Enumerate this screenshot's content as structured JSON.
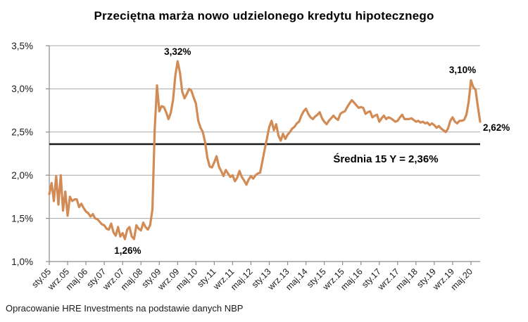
{
  "title": "Przeciętna marża nowo udzielonego kredytu hipotecznego",
  "footer": "Opracowanie HRE Investments na podstawie danych NBP",
  "chart_data": {
    "type": "line",
    "title": "Przeciętna marża nowo udzielonego kredytu hipotecznego",
    "xlabel": "",
    "ylabel": "",
    "ylim": [
      1.0,
      3.5
    ],
    "grid": "horizontal",
    "legend": "none",
    "line_color": "#D28B55",
    "x_unit": "month",
    "x_tick_interval_months": 8,
    "x_tick_labels": [
      "sty.05",
      "wrz.05",
      "maj.06",
      "sty.07",
      "wrz.07",
      "maj.08",
      "sty.09",
      "wrz.09",
      "maj.10",
      "sty.11",
      "wrz.11",
      "maj.12",
      "sty.13",
      "wrz.13",
      "maj.14",
      "sty.15",
      "wrz.15",
      "maj.16",
      "sty.17",
      "wrz.17",
      "maj.18",
      "sty.19",
      "wrz.19",
      "maj.20"
    ],
    "y_tick_labels": [
      "1,0%",
      "1,5%",
      "2,0%",
      "2,5%",
      "3,0%",
      "3,5%"
    ],
    "values": [
      1.78,
      1.91,
      1.7,
      1.99,
      1.66,
      2.0,
      1.59,
      1.81,
      1.53,
      1.75,
      1.7,
      1.72,
      1.72,
      1.63,
      1.67,
      1.62,
      1.58,
      1.56,
      1.52,
      1.55,
      1.5,
      1.49,
      1.46,
      1.43,
      1.42,
      1.38,
      1.37,
      1.44,
      1.34,
      1.3,
      1.4,
      1.29,
      1.33,
      1.26,
      1.37,
      1.4,
      1.29,
      1.26,
      1.42,
      1.38,
      1.36,
      1.45,
      1.4,
      1.37,
      1.42,
      1.6,
      2.52,
      3.04,
      2.74,
      2.8,
      2.79,
      2.73,
      2.65,
      2.72,
      2.87,
      3.15,
      3.32,
      3.19,
      2.97,
      2.89,
      2.94,
      3.0,
      2.98,
      2.9,
      2.83,
      2.63,
      2.55,
      2.5,
      2.38,
      2.2,
      2.1,
      2.09,
      2.15,
      2.22,
      2.1,
      2.05,
      1.99,
      2.06,
      2.02,
      1.98,
      2.0,
      1.93,
      1.97,
      2.05,
      1.98,
      1.94,
      1.89,
      1.95,
      1.99,
      1.96,
      2.0,
      2.02,
      2.03,
      2.16,
      2.3,
      2.43,
      2.56,
      2.63,
      2.52,
      2.59,
      2.46,
      2.4,
      2.48,
      2.42,
      2.47,
      2.5,
      2.54,
      2.56,
      2.6,
      2.62,
      2.69,
      2.74,
      2.77,
      2.71,
      2.67,
      2.65,
      2.68,
      2.7,
      2.73,
      2.66,
      2.62,
      2.59,
      2.63,
      2.66,
      2.69,
      2.66,
      2.64,
      2.71,
      2.73,
      2.74,
      2.79,
      2.83,
      2.87,
      2.84,
      2.81,
      2.78,
      2.79,
      2.78,
      2.71,
      2.73,
      2.74,
      2.67,
      2.69,
      2.7,
      2.62,
      2.66,
      2.69,
      2.65,
      2.67,
      2.66,
      2.64,
      2.62,
      2.63,
      2.67,
      2.7,
      2.65,
      2.65,
      2.65,
      2.66,
      2.64,
      2.62,
      2.63,
      2.61,
      2.62,
      2.6,
      2.61,
      2.58,
      2.6,
      2.58,
      2.55,
      2.57,
      2.54,
      2.52,
      2.5,
      2.54,
      2.63,
      2.67,
      2.62,
      2.6,
      2.63,
      2.63,
      2.64,
      2.7,
      2.85,
      3.1,
      3.02,
      2.99,
      2.8,
      2.62
    ],
    "average_line": {
      "label": "Średnia 15 Y = 2,36%",
      "value": 2.36,
      "color": "#1a1a1a"
    },
    "annotations": [
      {
        "label": "3,32%",
        "index": 56,
        "value": 3.32,
        "position": "above"
      },
      {
        "label": "1,26%",
        "index": 33,
        "value": 1.26,
        "position": "below"
      },
      {
        "label": "3,10%",
        "index": 184,
        "value": 3.1,
        "position": "above-left"
      },
      {
        "label": "2,62%",
        "index": 188,
        "value": 2.62,
        "position": "right"
      }
    ]
  }
}
